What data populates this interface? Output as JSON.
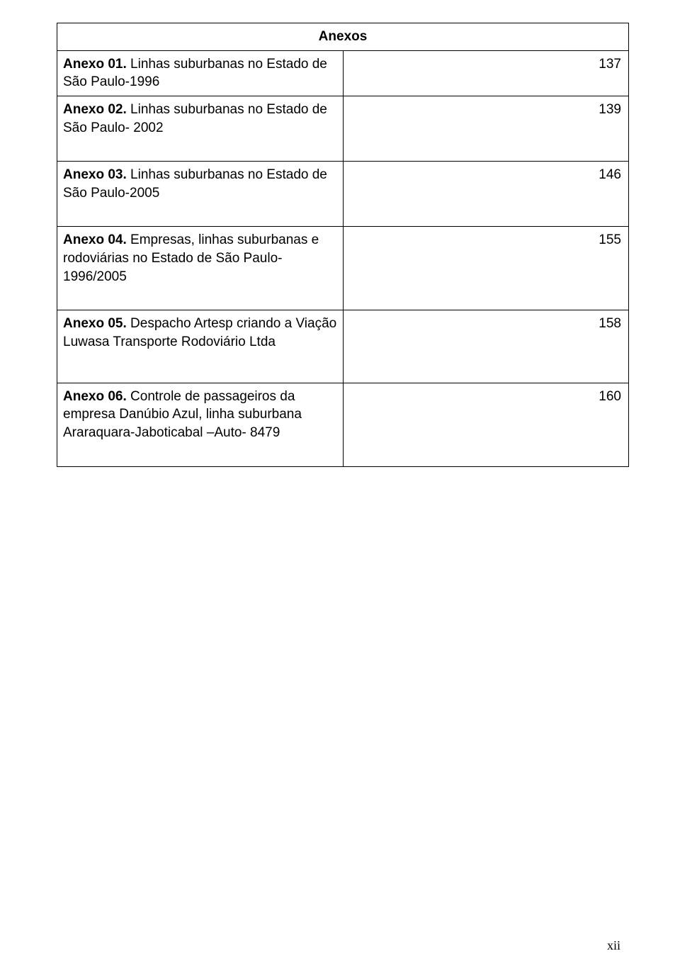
{
  "header": "Anexos",
  "rows": [
    {
      "label": "Anexo 01.",
      "text": " Linhas suburbanas no Estado de São Paulo-1996",
      "page": "137"
    },
    {
      "label": "Anexo 02.",
      "text": " Linhas suburbanas no Estado de São Paulo- 2002",
      "page": "139"
    },
    {
      "label": "Anexo 03.",
      "text": " Linhas suburbanas no Estado de São Paulo-2005",
      "page": "146"
    },
    {
      "label": "Anexo 04.",
      "text": " Empresas, linhas suburbanas e rodoviárias no Estado de São Paulo-1996/2005",
      "page": "155"
    },
    {
      "label": "Anexo 05.",
      "text": " Despacho Artesp criando a Viação Luwasa Transporte Rodoviário Ltda",
      "page": "158"
    },
    {
      "label": "Anexo 06.",
      "text": " Controle de passageiros da empresa Danúbio Azul, linha suburbana Araraquara-Jaboticabal –Auto- 8479",
      "page": "160"
    }
  ],
  "footer_page": "xii",
  "colors": {
    "background": "#ffffff",
    "border": "#000000",
    "text": "#000000"
  }
}
